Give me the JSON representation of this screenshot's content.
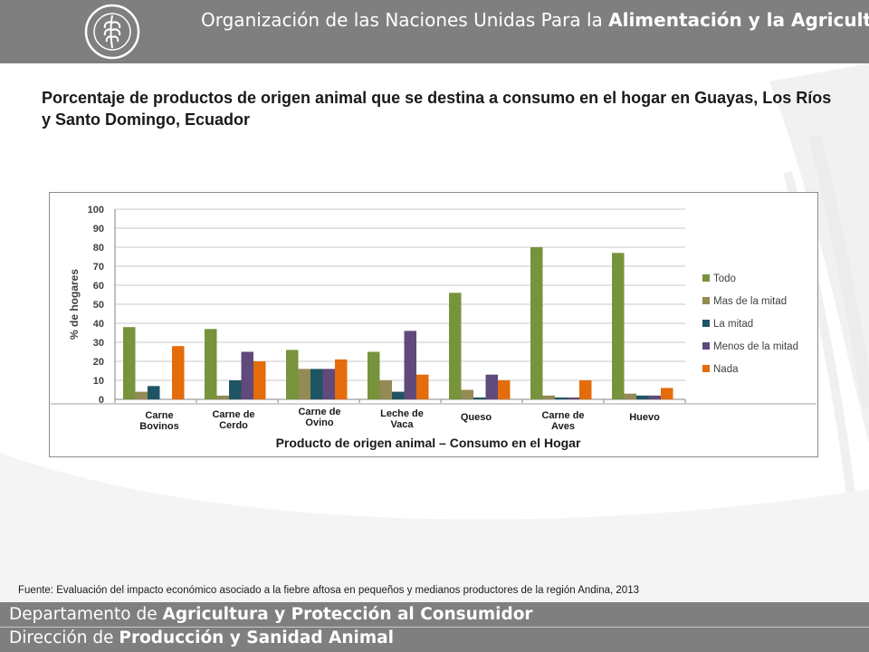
{
  "header": {
    "org_prefix": "Organización de las Naciones Unidas Para la ",
    "org_highlight": "Alimentación y la Agricultura",
    "logo_text": "FAO FIAT PANIS"
  },
  "title": "Porcentaje de productos de origen animal que se destina a consumo en el hogar en Guayas, Los Ríos y Santo Domingo, Ecuador",
  "source": "Fuente: Evaluación del impacto económico asociado a la fiebre aftosa en pequeños y medianos productores de la región Andina, 2013",
  "footer": {
    "line1_prefix": "Departamento de ",
    "line1_highlight": "Agricultura y Protección al Consumidor",
    "line2_prefix": "Dirección de ",
    "line2_highlight": "Producción y Sanidad Animal"
  },
  "chart_data": {
    "type": "bar",
    "title": "",
    "xlabel": "Producto de origen animal – Consumo en el Hogar",
    "ylabel": "% de hogares",
    "ylim": [
      0,
      100
    ],
    "yticks": [
      0,
      10,
      20,
      30,
      40,
      50,
      60,
      70,
      80,
      90,
      100
    ],
    "grid": true,
    "legend_position": "right",
    "categories": [
      [
        "Carne",
        "Bovinos"
      ],
      [
        "Carne de",
        "Cerdo"
      ],
      [
        "Carne de",
        "Ovino"
      ],
      [
        "Leche de",
        "Vaca"
      ],
      [
        "Queso"
      ],
      [
        "Carne de",
        "Aves"
      ],
      [
        "Huevo"
      ]
    ],
    "series": [
      {
        "name": "Todo",
        "color": "#77933c",
        "values": [
          38,
          37,
          26,
          25,
          56,
          80,
          77
        ]
      },
      {
        "name": "Mas de la mitad",
        "color": "#948a54",
        "values": [
          4,
          2,
          16,
          10,
          5,
          2,
          3
        ]
      },
      {
        "name": "La mitad",
        "color": "#1f5464",
        "values": [
          7,
          10,
          16,
          4,
          1,
          1,
          2
        ]
      },
      {
        "name": "Menos de la mitad",
        "color": "#604a7b",
        "values": [
          0,
          25,
          16,
          36,
          13,
          1,
          2
        ]
      },
      {
        "name": "Nada",
        "color": "#e46c0a",
        "values": [
          28,
          20,
          21,
          13,
          10,
          10,
          6
        ]
      }
    ]
  }
}
